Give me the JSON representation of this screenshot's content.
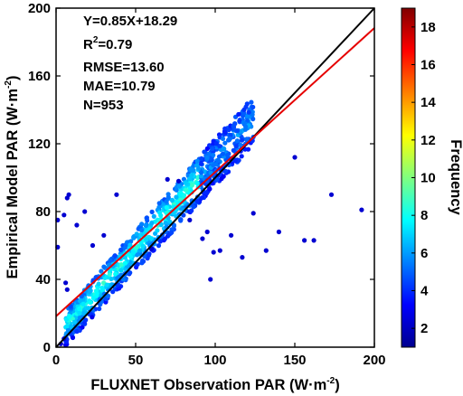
{
  "chart_data": {
    "type": "scatter",
    "xlabel": "FLUXNET Observation PAR (W·m",
    "xlabel_sup": "-2",
    "xlabel_end": ")",
    "ylabel": "Empirical Model PAR (W·m",
    "ylabel_sup": "-2",
    "ylabel_end": ")",
    "xlim": [
      0,
      200
    ],
    "ylim": [
      0,
      200
    ],
    "xticks": [
      "0",
      "50",
      "100",
      "150",
      "200"
    ],
    "yticks": [
      "0",
      "40",
      "80",
      "120",
      "160",
      "200"
    ],
    "colorbar": {
      "label": "Frequency",
      "range": [
        1,
        19
      ],
      "ticks": [
        "2",
        "4",
        "6",
        "8",
        "10",
        "12",
        "14",
        "16",
        "18"
      ]
    },
    "stats": {
      "equation": "Y=0.85X+18.29",
      "r2_prefix": "R",
      "r2_sup": "2",
      "r2_value": "=0.79",
      "rmse": "RMSE=13.60",
      "mae": "MAE=10.79",
      "n": "N=953"
    },
    "lines": [
      {
        "name": "1:1",
        "color": "#000000",
        "slope": 1.0,
        "intercept": 0
      },
      {
        "name": "fit",
        "color": "#e60000",
        "slope": 0.85,
        "intercept": 18.29
      }
    ],
    "outliers": [
      [
        1,
        75
      ],
      [
        1,
        59
      ],
      [
        3,
        2
      ],
      [
        5,
        78
      ],
      [
        6,
        38
      ],
      [
        7,
        88
      ],
      [
        7,
        34
      ],
      [
        8,
        90
      ],
      [
        5,
        5
      ],
      [
        13,
        72
      ],
      [
        18,
        80
      ],
      [
        23,
        60
      ],
      [
        30,
        66
      ],
      [
        38,
        90
      ],
      [
        70,
        99
      ],
      [
        77,
        98
      ],
      [
        84,
        75
      ],
      [
        92,
        64
      ],
      [
        95,
        68
      ],
      [
        99,
        56
      ],
      [
        103,
        57
      ],
      [
        117,
        53
      ],
      [
        132,
        57
      ],
      [
        140,
        68
      ],
      [
        150,
        112
      ],
      [
        156,
        63
      ],
      [
        162,
        63
      ],
      [
        173,
        90
      ],
      [
        192,
        81
      ],
      [
        97,
        40
      ],
      [
        124,
        79
      ],
      [
        110,
        66
      ],
      [
        60,
        58
      ]
    ],
    "clusters": [
      {
        "x0": 6,
        "x1": 124,
        "lower_offset": -5,
        "upper_offset_lo": 15,
        "upper_offset_hi": 25,
        "n": 900
      }
    ]
  }
}
